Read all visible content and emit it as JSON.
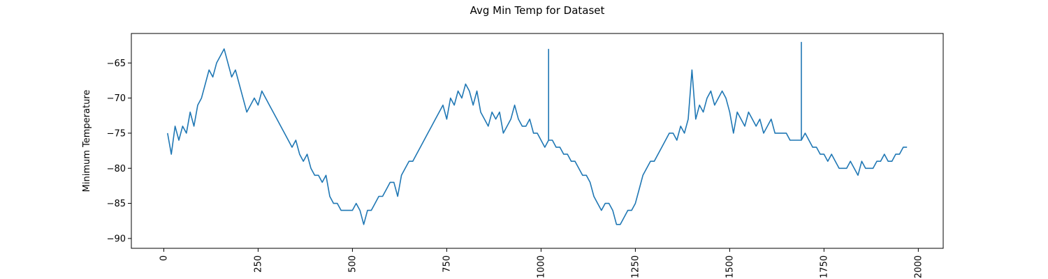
{
  "chart_data": {
    "type": "line",
    "title": "Avg Min Temp for Dataset",
    "xlabel": "",
    "ylabel": "Minimum Temperature",
    "xlim": [
      -86,
      2066
    ],
    "ylim": [
      -91.4,
      -60.8
    ],
    "x_ticks": [
      0,
      250,
      500,
      750,
      1000,
      1250,
      1500,
      1750,
      2000
    ],
    "y_ticks": [
      -65,
      -70,
      -75,
      -80,
      -85,
      -90
    ],
    "grid": false,
    "legend": "none",
    "colors": {
      "line": "#1f77b4"
    },
    "series": [
      {
        "x": [
          10,
          20,
          30,
          40,
          50,
          60,
          70,
          80,
          90,
          100,
          110,
          120,
          130,
          140,
          150,
          160,
          170,
          180,
          190,
          200,
          210,
          220,
          230,
          240,
          250,
          260,
          270,
          280,
          290,
          300,
          310,
          320,
          330,
          340,
          350,
          360,
          370,
          380,
          390,
          400,
          410,
          420,
          430,
          440,
          450,
          460,
          470,
          480,
          490,
          500,
          510,
          520,
          530,
          540,
          550,
          560,
          570,
          580,
          590,
          600,
          610,
          620,
          630,
          640,
          650,
          660,
          670,
          680,
          690,
          700,
          710,
          720,
          730,
          740,
          750,
          760,
          770,
          780,
          790,
          800,
          810,
          820,
          830,
          840,
          850,
          860,
          870,
          880,
          890,
          900,
          910,
          920,
          930,
          940,
          950,
          960,
          970,
          980,
          990,
          1000,
          1010,
          1020,
          1030,
          1040,
          1050,
          1060,
          1070,
          1080,
          1090,
          1100,
          1110,
          1120,
          1130,
          1140,
          1150,
          1160,
          1170,
          1180,
          1190,
          1200,
          1210,
          1220,
          1230,
          1240,
          1250,
          1260,
          1270,
          1280,
          1290,
          1300,
          1310,
          1320,
          1330,
          1340,
          1350,
          1360,
          1370,
          1380,
          1390,
          1400,
          1410,
          1420,
          1430,
          1440,
          1450,
          1460,
          1470,
          1480,
          1490,
          1500,
          1510,
          1520,
          1530,
          1540,
          1550,
          1560,
          1570,
          1580,
          1590,
          1600,
          1610,
          1620,
          1630,
          1640,
          1650,
          1660,
          1670,
          1680,
          1690,
          1700,
          1710,
          1720,
          1730,
          1740,
          1750,
          1760,
          1770,
          1780,
          1790,
          1800,
          1810,
          1820,
          1830,
          1840,
          1850,
          1860,
          1870,
          1880,
          1890,
          1900,
          1910,
          1920,
          1930,
          1940,
          1950,
          1960,
          1970
        ],
        "y": [
          -75,
          -78,
          -74,
          -76,
          -74,
          -75,
          -72,
          -74,
          -71,
          -70,
          -68,
          -66,
          -67,
          -65,
          -64,
          -63,
          -65,
          -67,
          -66,
          -68,
          -70,
          -72,
          -71,
          -70,
          -71,
          -69,
          -70,
          -71,
          -72,
          -73,
          -74,
          -75,
          -76,
          -77,
          -76,
          -78,
          -79,
          -78,
          -80,
          -81,
          -81,
          -82,
          -81,
          -84,
          -85,
          -85,
          -86,
          -86,
          -86,
          -86,
          -85,
          -86,
          -88,
          -86,
          -86,
          -85,
          -84,
          -84,
          -83,
          -82,
          -82,
          -84,
          -81,
          -80,
          -79,
          -79,
          -78,
          -77,
          -76,
          -75,
          -74,
          -73,
          -72,
          -71,
          -73,
          -70,
          -71,
          -69,
          -70,
          -68,
          -69,
          -71,
          -69,
          -72,
          -73,
          -74,
          -72,
          -73,
          -72,
          -75,
          -74,
          -73,
          -71,
          -73,
          -74,
          -74,
          -73,
          -75,
          -75,
          -76,
          -77,
          -76,
          -76,
          -77,
          -77,
          -78,
          -78,
          -79,
          -79,
          -80,
          -81,
          -81,
          -82,
          -84,
          -85,
          -86,
          -85,
          -85,
          -86,
          -88,
          -88,
          -87,
          -86,
          -86,
          -85,
          -83,
          -81,
          -80,
          -79,
          -79,
          -78,
          -77,
          -76,
          -75,
          -75,
          -76,
          -74,
          -75,
          -73,
          -66,
          -73,
          -71,
          -72,
          -70,
          -69,
          -71,
          -70,
          -69,
          -70,
          -72,
          -75,
          -72,
          -73,
          -74,
          -72,
          -73,
          -74,
          -73,
          -75,
          -74,
          -73,
          -75,
          -75,
          -75,
          -75,
          -76,
          -76,
          -76,
          -76,
          -75,
          -76,
          -77,
          -77,
          -78,
          -78,
          -79,
          -78,
          -79,
          -80,
          -80,
          -80,
          -79,
          -80,
          -81,
          -79,
          -80,
          -80,
          -80,
          -79,
          -79,
          -78,
          -79,
          -79,
          -78,
          -78,
          -77,
          -77
        ]
      }
    ],
    "annotations": [
      {
        "x": 1020,
        "y": -63,
        "note": "spike"
      },
      {
        "x": 1690,
        "y": -62,
        "note": "spike"
      }
    ]
  }
}
